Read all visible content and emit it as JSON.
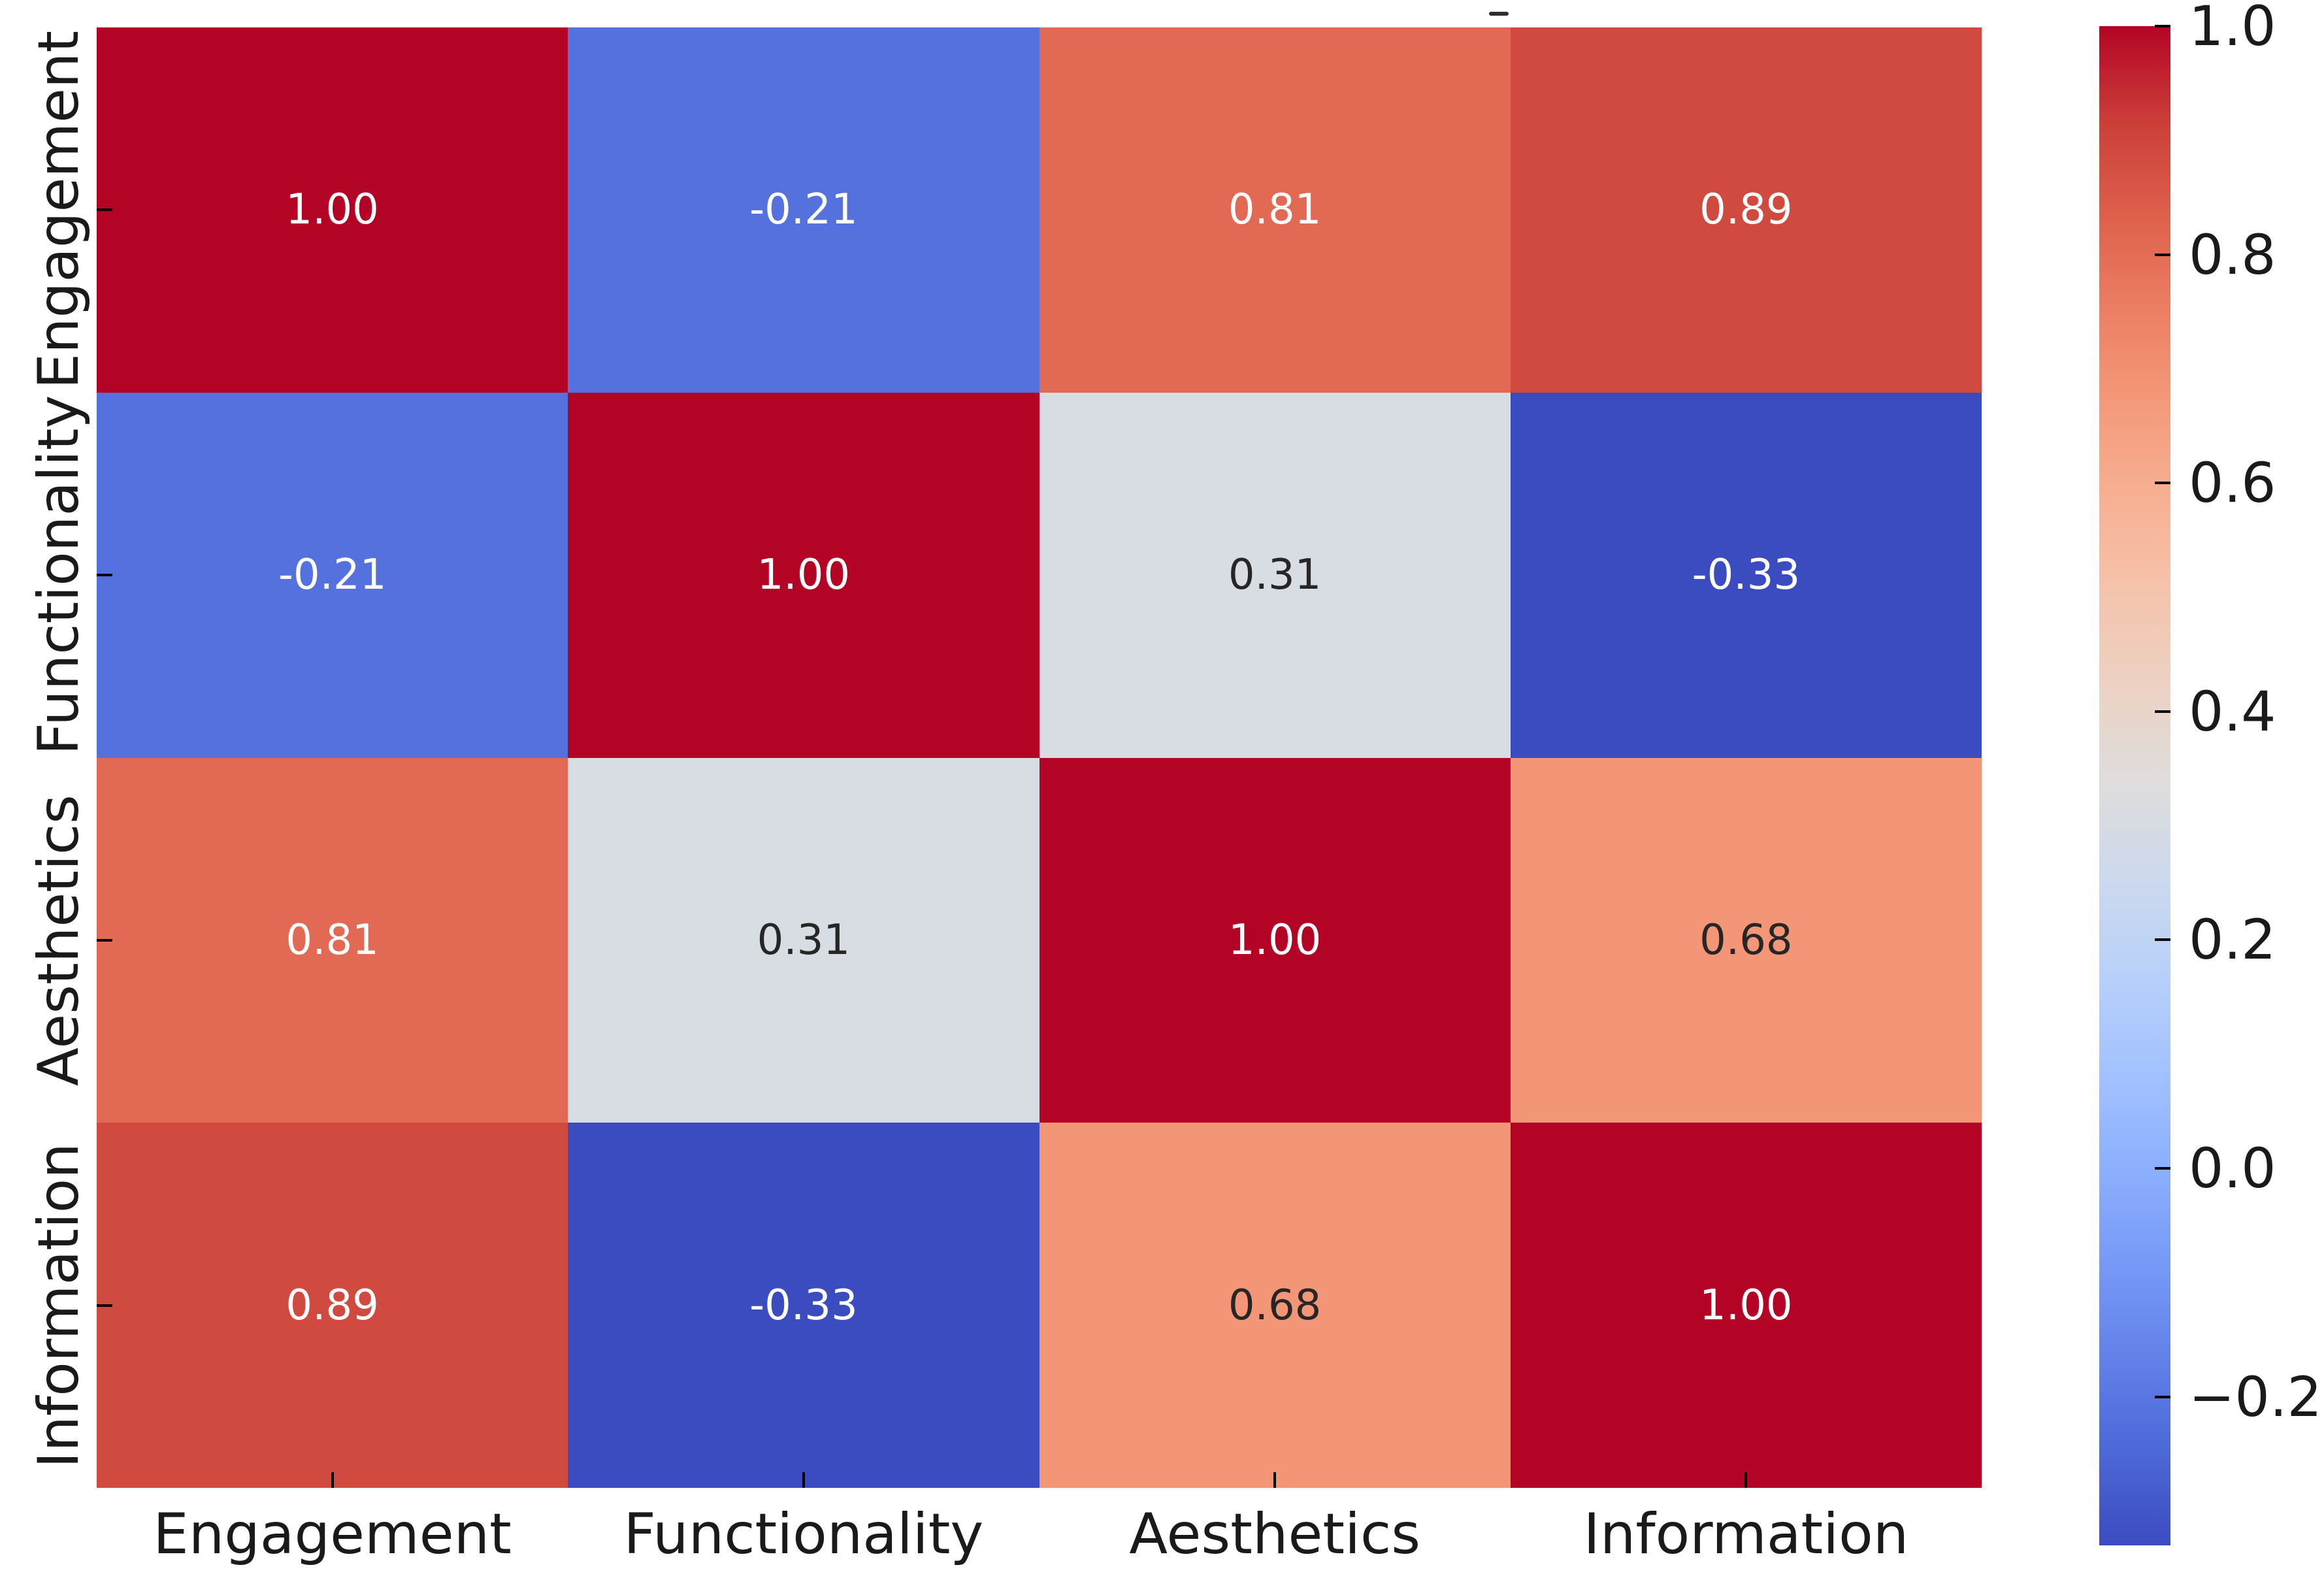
{
  "chart_data": {
    "type": "heatmap",
    "title": "",
    "xlabel": "",
    "ylabel": "",
    "categories": [
      "Engagement",
      "Functionality",
      "Aesthetics",
      "Information"
    ],
    "matrix": [
      [
        1.0,
        -0.21,
        0.81,
        0.89
      ],
      [
        -0.21,
        1.0,
        0.31,
        -0.33
      ],
      [
        0.81,
        0.31,
        1.0,
        0.68
      ],
      [
        0.89,
        -0.33,
        0.68,
        1.0
      ]
    ],
    "cell_labels": [
      [
        "1.00",
        "-0.21",
        "0.81",
        "0.89"
      ],
      [
        "-0.21",
        "1.00",
        "0.31",
        "-0.33"
      ],
      [
        "0.81",
        "0.31",
        "1.00",
        "0.68"
      ],
      [
        "0.89",
        "-0.33",
        "0.68",
        "1.00"
      ]
    ],
    "cell_colors": [
      [
        "#b40426",
        "#5471de",
        "#e26954",
        "#d14a3f"
      ],
      [
        "#5471de",
        "#b40426",
        "#d8dce3",
        "#3b4cc0"
      ],
      [
        "#e26954",
        "#d8dce3",
        "#b40426",
        "#f39677"
      ],
      [
        "#d14a3f",
        "#3b4cc0",
        "#f39677",
        "#b40426"
      ]
    ],
    "cell_text_colors": [
      [
        "#ffffff",
        "#ffffff",
        "#ffffff",
        "#ffffff"
      ],
      [
        "#ffffff",
        "#ffffff",
        "#262626",
        "#ffffff"
      ],
      [
        "#ffffff",
        "#262626",
        "#ffffff",
        "#262626"
      ],
      [
        "#ffffff",
        "#ffffff",
        "#262626",
        "#ffffff"
      ]
    ],
    "colormap": "coolwarm",
    "vmin": -0.33,
    "vmax": 1.0,
    "grid": false,
    "legend_position": "right-colorbar",
    "colorbar": {
      "tick_labels": [
        "1.0",
        "0.8",
        "0.6",
        "0.4",
        "0.2",
        "0.0",
        "−0.2"
      ],
      "tick_values": [
        1.0,
        0.8,
        0.6,
        0.4,
        0.2,
        0.0,
        -0.2
      ],
      "gradient_stops": [
        {
          "pos": 0,
          "color": "#b40426"
        },
        {
          "pos": 6.25,
          "color": "#cb3e38"
        },
        {
          "pos": 12.5,
          "color": "#de604d"
        },
        {
          "pos": 18.75,
          "color": "#ec7f63"
        },
        {
          "pos": 25,
          "color": "#f49a7b"
        },
        {
          "pos": 31.25,
          "color": "#f7b194"
        },
        {
          "pos": 37.5,
          "color": "#f5c4ad"
        },
        {
          "pos": 43.75,
          "color": "#ecd3c5"
        },
        {
          "pos": 50,
          "color": "#dddddd"
        },
        {
          "pos": 56.25,
          "color": "#ccd9ee"
        },
        {
          "pos": 62.5,
          "color": "#b8d0f9"
        },
        {
          "pos": 68.75,
          "color": "#a3c2ff"
        },
        {
          "pos": 75,
          "color": "#8db0fe"
        },
        {
          "pos": 81.25,
          "color": "#779af7"
        },
        {
          "pos": 87.5,
          "color": "#6282ea"
        },
        {
          "pos": 93.75,
          "color": "#4d68d7"
        },
        {
          "pos": 100,
          "color": "#3b4cc0"
        }
      ]
    },
    "axis_text_color": "#1a1a1a",
    "tick_color": "#000000",
    "tick_direction": "in",
    "background_color": "#ffffff"
  }
}
